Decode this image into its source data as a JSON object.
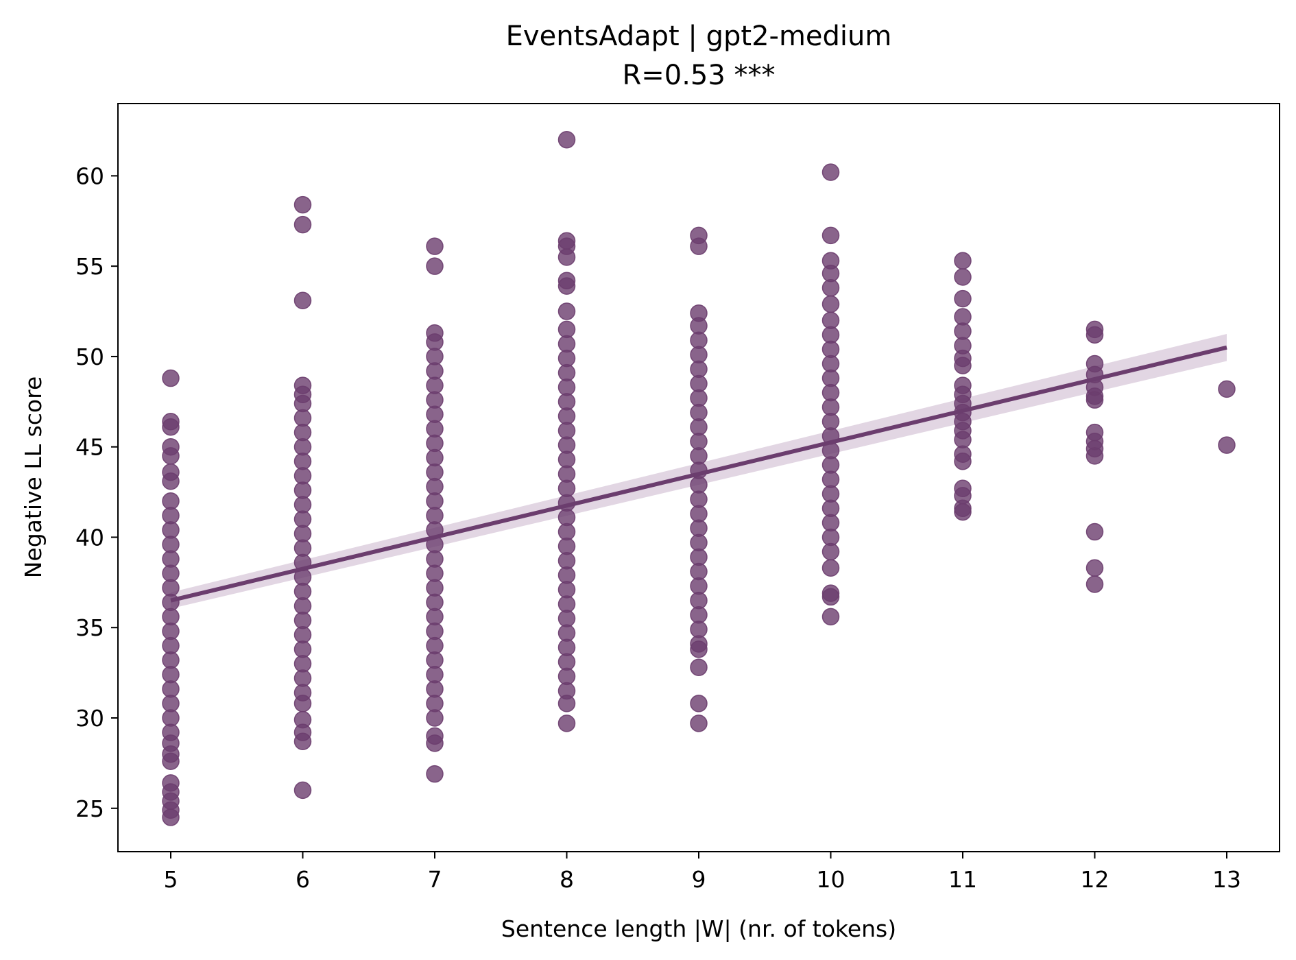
{
  "chart_data": {
    "type": "scatter",
    "title": "EventsAdapt | gpt2-medium",
    "subtitle": "R=0.53 ***",
    "xlabel": "Sentence length |W| (nr. of tokens)",
    "ylabel": "Negative LL score",
    "xlim": [
      4.6,
      13.4
    ],
    "ylim": [
      22.6,
      64.0
    ],
    "xticks": [
      5,
      6,
      7,
      8,
      9,
      10,
      11,
      12,
      13
    ],
    "yticks": [
      25,
      30,
      35,
      40,
      45,
      50,
      55,
      60
    ],
    "grid": false,
    "legend": "none",
    "colors": {
      "points": "#6b3d6e",
      "line": "#6b3d6e",
      "ci_band": "#e2d6e3"
    },
    "series": [
      {
        "points": [
          {
            "x": 5,
            "y": 48.8
          },
          {
            "x": 5,
            "y": 46.4
          },
          {
            "x": 5,
            "y": 46.1
          },
          {
            "x": 5,
            "y": 45.0
          },
          {
            "x": 5,
            "y": 44.5
          },
          {
            "x": 5,
            "y": 43.6
          },
          {
            "x": 5,
            "y": 43.1
          },
          {
            "x": 5,
            "y": 42.0
          },
          {
            "x": 5,
            "y": 41.2
          },
          {
            "x": 5,
            "y": 40.4
          },
          {
            "x": 5,
            "y": 39.6
          },
          {
            "x": 5,
            "y": 38.8
          },
          {
            "x": 5,
            "y": 38.0
          },
          {
            "x": 5,
            "y": 37.2
          },
          {
            "x": 5,
            "y": 36.4
          },
          {
            "x": 5,
            "y": 35.6
          },
          {
            "x": 5,
            "y": 34.8
          },
          {
            "x": 5,
            "y": 34.0
          },
          {
            "x": 5,
            "y": 33.2
          },
          {
            "x": 5,
            "y": 32.4
          },
          {
            "x": 5,
            "y": 31.6
          },
          {
            "x": 5,
            "y": 30.8
          },
          {
            "x": 5,
            "y": 30.0
          },
          {
            "x": 5,
            "y": 29.2
          },
          {
            "x": 5,
            "y": 28.6
          },
          {
            "x": 5,
            "y": 28.0
          },
          {
            "x": 5,
            "y": 27.6
          },
          {
            "x": 5,
            "y": 26.4
          },
          {
            "x": 5,
            "y": 25.9
          },
          {
            "x": 5,
            "y": 25.4
          },
          {
            "x": 5,
            "y": 24.9
          },
          {
            "x": 5,
            "y": 24.5
          },
          {
            "x": 6,
            "y": 58.4
          },
          {
            "x": 6,
            "y": 57.3
          },
          {
            "x": 6,
            "y": 53.1
          },
          {
            "x": 6,
            "y": 48.4
          },
          {
            "x": 6,
            "y": 47.9
          },
          {
            "x": 6,
            "y": 47.4
          },
          {
            "x": 6,
            "y": 46.6
          },
          {
            "x": 6,
            "y": 45.8
          },
          {
            "x": 6,
            "y": 45.0
          },
          {
            "x": 6,
            "y": 44.2
          },
          {
            "x": 6,
            "y": 43.4
          },
          {
            "x": 6,
            "y": 42.6
          },
          {
            "x": 6,
            "y": 41.8
          },
          {
            "x": 6,
            "y": 41.0
          },
          {
            "x": 6,
            "y": 40.2
          },
          {
            "x": 6,
            "y": 39.4
          },
          {
            "x": 6,
            "y": 38.6
          },
          {
            "x": 6,
            "y": 37.8
          },
          {
            "x": 6,
            "y": 37.0
          },
          {
            "x": 6,
            "y": 36.2
          },
          {
            "x": 6,
            "y": 35.4
          },
          {
            "x": 6,
            "y": 34.6
          },
          {
            "x": 6,
            "y": 33.8
          },
          {
            "x": 6,
            "y": 33.0
          },
          {
            "x": 6,
            "y": 32.2
          },
          {
            "x": 6,
            "y": 31.4
          },
          {
            "x": 6,
            "y": 30.8
          },
          {
            "x": 6,
            "y": 29.9
          },
          {
            "x": 6,
            "y": 29.2
          },
          {
            "x": 6,
            "y": 28.7
          },
          {
            "x": 6,
            "y": 26.0
          },
          {
            "x": 7,
            "y": 56.1
          },
          {
            "x": 7,
            "y": 55.0
          },
          {
            "x": 7,
            "y": 51.3
          },
          {
            "x": 7,
            "y": 50.8
          },
          {
            "x": 7,
            "y": 50.0
          },
          {
            "x": 7,
            "y": 49.2
          },
          {
            "x": 7,
            "y": 48.4
          },
          {
            "x": 7,
            "y": 47.6
          },
          {
            "x": 7,
            "y": 46.8
          },
          {
            "x": 7,
            "y": 46.0
          },
          {
            "x": 7,
            "y": 45.2
          },
          {
            "x": 7,
            "y": 44.4
          },
          {
            "x": 7,
            "y": 43.6
          },
          {
            "x": 7,
            "y": 42.8
          },
          {
            "x": 7,
            "y": 42.0
          },
          {
            "x": 7,
            "y": 41.2
          },
          {
            "x": 7,
            "y": 40.4
          },
          {
            "x": 7,
            "y": 39.6
          },
          {
            "x": 7,
            "y": 38.8
          },
          {
            "x": 7,
            "y": 38.0
          },
          {
            "x": 7,
            "y": 37.2
          },
          {
            "x": 7,
            "y": 36.4
          },
          {
            "x": 7,
            "y": 35.6
          },
          {
            "x": 7,
            "y": 34.8
          },
          {
            "x": 7,
            "y": 34.0
          },
          {
            "x": 7,
            "y": 33.2
          },
          {
            "x": 7,
            "y": 32.4
          },
          {
            "x": 7,
            "y": 31.6
          },
          {
            "x": 7,
            "y": 30.8
          },
          {
            "x": 7,
            "y": 30.0
          },
          {
            "x": 7,
            "y": 29.0
          },
          {
            "x": 7,
            "y": 28.6
          },
          {
            "x": 7,
            "y": 26.9
          },
          {
            "x": 8,
            "y": 62.0
          },
          {
            "x": 8,
            "y": 56.4
          },
          {
            "x": 8,
            "y": 56.1
          },
          {
            "x": 8,
            "y": 55.5
          },
          {
            "x": 8,
            "y": 54.2
          },
          {
            "x": 8,
            "y": 53.9
          },
          {
            "x": 8,
            "y": 52.5
          },
          {
            "x": 8,
            "y": 51.5
          },
          {
            "x": 8,
            "y": 50.7
          },
          {
            "x": 8,
            "y": 49.9
          },
          {
            "x": 8,
            "y": 49.1
          },
          {
            "x": 8,
            "y": 48.3
          },
          {
            "x": 8,
            "y": 47.5
          },
          {
            "x": 8,
            "y": 46.7
          },
          {
            "x": 8,
            "y": 45.9
          },
          {
            "x": 8,
            "y": 45.1
          },
          {
            "x": 8,
            "y": 44.3
          },
          {
            "x": 8,
            "y": 43.5
          },
          {
            "x": 8,
            "y": 42.7
          },
          {
            "x": 8,
            "y": 41.9
          },
          {
            "x": 8,
            "y": 41.1
          },
          {
            "x": 8,
            "y": 40.3
          },
          {
            "x": 8,
            "y": 39.5
          },
          {
            "x": 8,
            "y": 38.7
          },
          {
            "x": 8,
            "y": 37.9
          },
          {
            "x": 8,
            "y": 37.1
          },
          {
            "x": 8,
            "y": 36.3
          },
          {
            "x": 8,
            "y": 35.5
          },
          {
            "x": 8,
            "y": 34.7
          },
          {
            "x": 8,
            "y": 33.9
          },
          {
            "x": 8,
            "y": 33.1
          },
          {
            "x": 8,
            "y": 32.3
          },
          {
            "x": 8,
            "y": 31.5
          },
          {
            "x": 8,
            "y": 30.8
          },
          {
            "x": 8,
            "y": 29.7
          },
          {
            "x": 9,
            "y": 56.7
          },
          {
            "x": 9,
            "y": 56.1
          },
          {
            "x": 9,
            "y": 52.4
          },
          {
            "x": 9,
            "y": 51.7
          },
          {
            "x": 9,
            "y": 50.9
          },
          {
            "x": 9,
            "y": 50.1
          },
          {
            "x": 9,
            "y": 49.3
          },
          {
            "x": 9,
            "y": 48.5
          },
          {
            "x": 9,
            "y": 47.7
          },
          {
            "x": 9,
            "y": 46.9
          },
          {
            "x": 9,
            "y": 46.1
          },
          {
            "x": 9,
            "y": 45.3
          },
          {
            "x": 9,
            "y": 44.5
          },
          {
            "x": 9,
            "y": 43.7
          },
          {
            "x": 9,
            "y": 42.9
          },
          {
            "x": 9,
            "y": 42.1
          },
          {
            "x": 9,
            "y": 41.3
          },
          {
            "x": 9,
            "y": 40.5
          },
          {
            "x": 9,
            "y": 39.7
          },
          {
            "x": 9,
            "y": 38.9
          },
          {
            "x": 9,
            "y": 38.1
          },
          {
            "x": 9,
            "y": 37.3
          },
          {
            "x": 9,
            "y": 36.5
          },
          {
            "x": 9,
            "y": 35.7
          },
          {
            "x": 9,
            "y": 34.9
          },
          {
            "x": 9,
            "y": 34.1
          },
          {
            "x": 9,
            "y": 33.8
          },
          {
            "x": 9,
            "y": 32.8
          },
          {
            "x": 9,
            "y": 30.8
          },
          {
            "x": 9,
            "y": 29.7
          },
          {
            "x": 10,
            "y": 60.2
          },
          {
            "x": 10,
            "y": 56.7
          },
          {
            "x": 10,
            "y": 55.3
          },
          {
            "x": 10,
            "y": 54.6
          },
          {
            "x": 10,
            "y": 53.8
          },
          {
            "x": 10,
            "y": 52.9
          },
          {
            "x": 10,
            "y": 52.0
          },
          {
            "x": 10,
            "y": 51.2
          },
          {
            "x": 10,
            "y": 50.4
          },
          {
            "x": 10,
            "y": 49.6
          },
          {
            "x": 10,
            "y": 48.8
          },
          {
            "x": 10,
            "y": 48.0
          },
          {
            "x": 10,
            "y": 47.2
          },
          {
            "x": 10,
            "y": 46.4
          },
          {
            "x": 10,
            "y": 45.6
          },
          {
            "x": 10,
            "y": 44.8
          },
          {
            "x": 10,
            "y": 44.0
          },
          {
            "x": 10,
            "y": 43.2
          },
          {
            "x": 10,
            "y": 42.4
          },
          {
            "x": 10,
            "y": 41.6
          },
          {
            "x": 10,
            "y": 40.8
          },
          {
            "x": 10,
            "y": 40.0
          },
          {
            "x": 10,
            "y": 39.2
          },
          {
            "x": 10,
            "y": 38.3
          },
          {
            "x": 10,
            "y": 36.9
          },
          {
            "x": 10,
            "y": 36.7
          },
          {
            "x": 10,
            "y": 35.6
          },
          {
            "x": 11,
            "y": 55.3
          },
          {
            "x": 11,
            "y": 54.4
          },
          {
            "x": 11,
            "y": 53.2
          },
          {
            "x": 11,
            "y": 52.2
          },
          {
            "x": 11,
            "y": 51.4
          },
          {
            "x": 11,
            "y": 50.6
          },
          {
            "x": 11,
            "y": 49.9
          },
          {
            "x": 11,
            "y": 49.5
          },
          {
            "x": 11,
            "y": 48.4
          },
          {
            "x": 11,
            "y": 47.9
          },
          {
            "x": 11,
            "y": 47.4
          },
          {
            "x": 11,
            "y": 46.9
          },
          {
            "x": 11,
            "y": 46.4
          },
          {
            "x": 11,
            "y": 45.9
          },
          {
            "x": 11,
            "y": 45.4
          },
          {
            "x": 11,
            "y": 44.6
          },
          {
            "x": 11,
            "y": 44.2
          },
          {
            "x": 11,
            "y": 42.7
          },
          {
            "x": 11,
            "y": 42.3
          },
          {
            "x": 11,
            "y": 41.6
          },
          {
            "x": 11,
            "y": 41.4
          },
          {
            "x": 12,
            "y": 51.5
          },
          {
            "x": 12,
            "y": 51.2
          },
          {
            "x": 12,
            "y": 49.6
          },
          {
            "x": 12,
            "y": 49.0
          },
          {
            "x": 12,
            "y": 48.3
          },
          {
            "x": 12,
            "y": 47.8
          },
          {
            "x": 12,
            "y": 47.6
          },
          {
            "x": 12,
            "y": 45.8
          },
          {
            "x": 12,
            "y": 45.3
          },
          {
            "x": 12,
            "y": 44.9
          },
          {
            "x": 12,
            "y": 44.5
          },
          {
            "x": 12,
            "y": 40.3
          },
          {
            "x": 12,
            "y": 38.3
          },
          {
            "x": 12,
            "y": 37.4
          },
          {
            "x": 13,
            "y": 48.2
          },
          {
            "x": 13,
            "y": 45.1
          }
        ]
      }
    ],
    "regression": {
      "x": [
        5,
        13
      ],
      "y": [
        36.5,
        50.5
      ],
      "ci_halfwidth_at_ends": [
        0.45,
        0.75
      ]
    }
  }
}
